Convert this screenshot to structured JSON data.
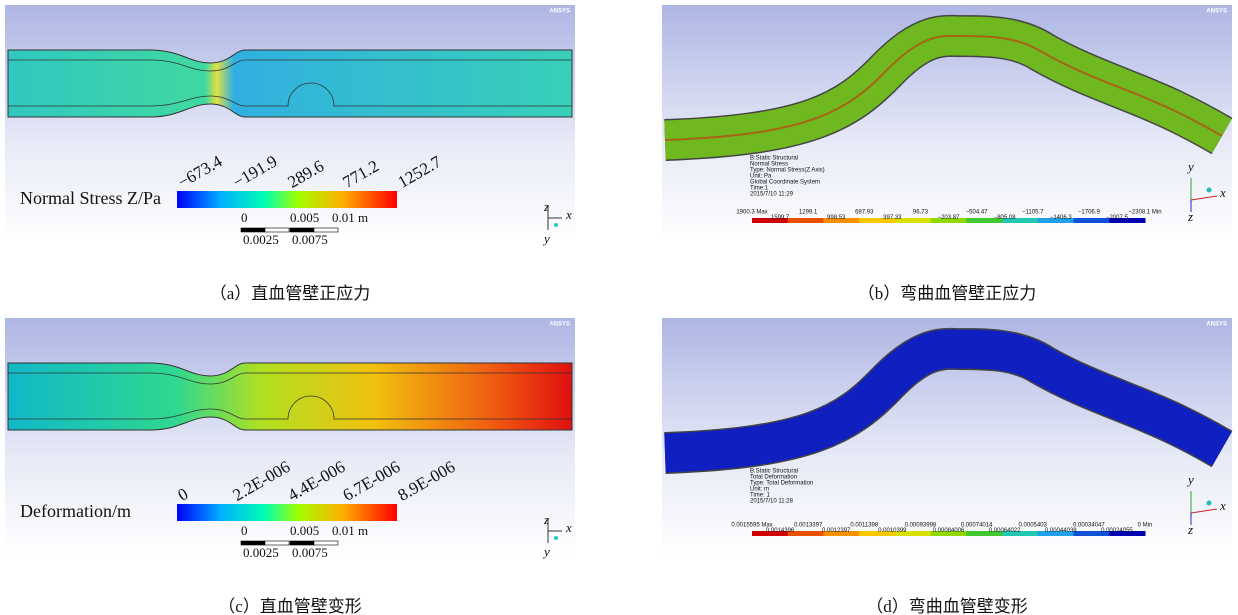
{
  "panels": [
    {
      "logo": "ANSYS",
      "legend_title": "Normal Stress Z/Pa",
      "legend_labels": [
        "−673.4",
        "−191.9",
        "289.6",
        "771.2",
        "1252.7"
      ],
      "scale": {
        "top": [
          "0",
          "0.005",
          "0.01 m"
        ],
        "bottom": [
          "0.0025",
          "0.0075"
        ]
      },
      "axes": [
        "z",
        "x",
        "y"
      ],
      "caption": "（a）直血管壁正应力"
    },
    {
      "logo": "ANSYS",
      "info": [
        "B:Static Structural",
        "Normal Stress",
        "Type: Normal Stress(Z Axis)",
        "Unit: Pa",
        "Global Coordinate System",
        "Time:1",
        "2015/7/10 11:29"
      ],
      "legend_top": [
        "1900.3 Max",
        "1299.1",
        "697.93",
        "96.73",
        "−504.47",
        "−1105.7",
        "−1706.9",
        "−2308.1 Min"
      ],
      "legend_bottom": [
        "1599.7",
        "998.53",
        "397.33",
        "−203.87",
        "−805.08",
        "−1406.3",
        "−2007.5"
      ],
      "axes": [
        "y",
        "x",
        "z"
      ],
      "caption": "（b）弯曲血管壁正应力"
    },
    {
      "logo": "ANSYS",
      "legend_title": "Deformation/m",
      "legend_labels": [
        "0",
        "2.2E-006",
        "4.4E-006",
        "6.7E-006",
        "8.9E-006"
      ],
      "scale": {
        "top": [
          "0",
          "0.005",
          "0.01 m"
        ],
        "bottom": [
          "0.0025",
          "0.0075"
        ]
      },
      "axes": [
        "z",
        "x",
        "y"
      ],
      "caption": "（c）直血管壁变形"
    },
    {
      "logo": "ANSYS",
      "info": [
        "B:Static Structural",
        "Total Deformation",
        "Type: Total Deformation",
        "Unit: m",
        "Time: 1",
        "2015/7/10 11:28"
      ],
      "legend_top": [
        "0.0015595 Max",
        "0.0013397",
        "0.0011398",
        "0.00093998",
        "0.00074014",
        "0.0005403",
        "0.00034047",
        "0 Min"
      ],
      "legend_bottom": [
        "0.0014396",
        "0.0012397",
        "0.0010399",
        "0.00084006",
        "0.00064022",
        "0.00044038",
        "0.00024055"
      ],
      "axes": [
        "y",
        "x",
        "z"
      ],
      "caption": "（d）弯曲血管壁变形"
    }
  ]
}
